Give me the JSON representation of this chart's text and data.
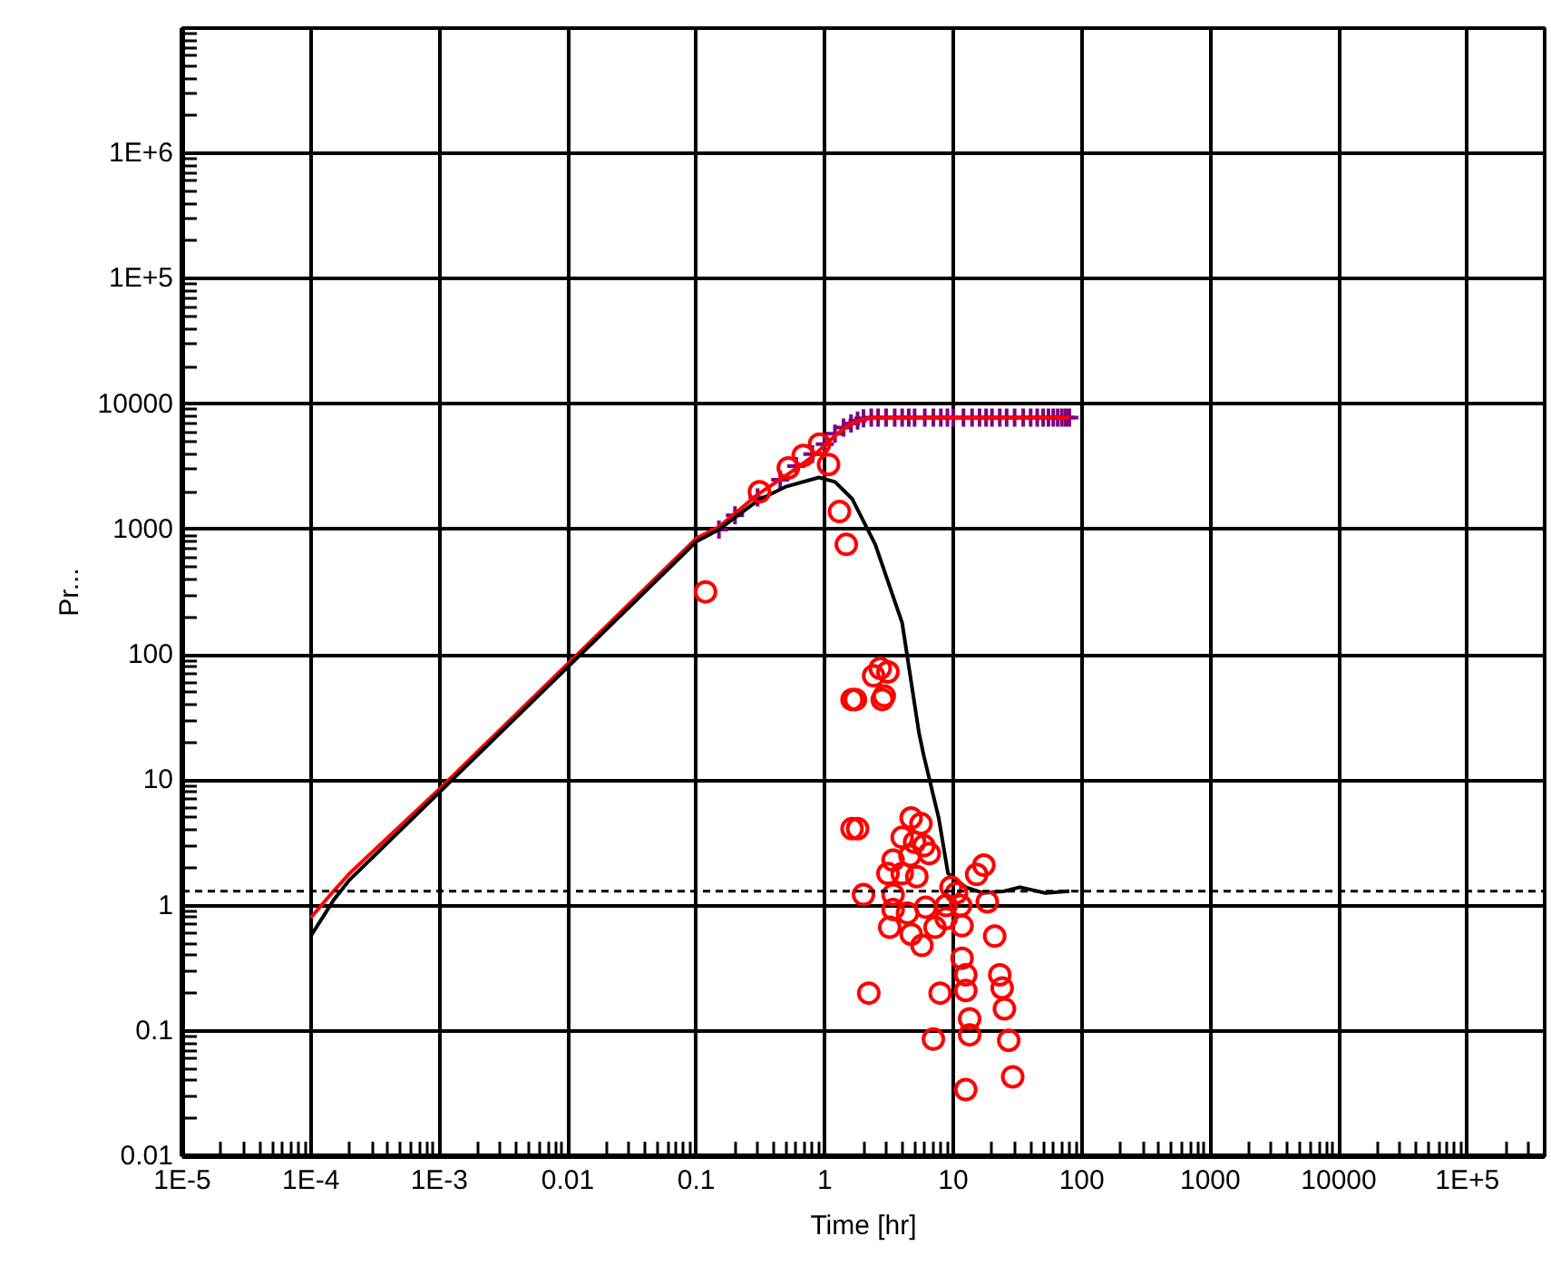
{
  "chart_data": {
    "type": "line",
    "xlabel": "Time [hr]",
    "ylabel": "Pr...",
    "log": "xy",
    "grid": true,
    "xlim": [
      1e-05,
      400000
    ],
    "ylim": [
      0.01,
      10000000
    ],
    "xticks": [
      {
        "value": 1e-05,
        "label": "1E-5"
      },
      {
        "value": 0.0001,
        "label": "1E-4"
      },
      {
        "value": 0.001,
        "label": "1E-3"
      },
      0.01,
      0.1,
      1,
      10,
      100,
      1000,
      10000,
      {
        "value": 100000,
        "label": "1E+5"
      }
    ],
    "yticks": [
      0.01,
      0.1,
      1,
      10,
      100,
      1000,
      10000,
      {
        "value": 100000,
        "label": "1E+5"
      },
      {
        "value": 1000000,
        "label": "1E+6"
      }
    ],
    "ref_lines": [
      {
        "axis": "y",
        "value": 1.3,
        "color": "#000000",
        "line_style": "dashed"
      }
    ],
    "series": [
      {
        "type": "scatter",
        "marker": "cross",
        "color": "#800080",
        "x": [
          0.15,
          0.2,
          0.3,
          0.45,
          0.6,
          0.8,
          1.0,
          1.2,
          1.4,
          1.6,
          1.8,
          2.0,
          2.3,
          2.6,
          3.0,
          3.5,
          4.0,
          4.5,
          5.0,
          6.0,
          7.0,
          8.0,
          9.0,
          10,
          12,
          14,
          16,
          18,
          20,
          23,
          26,
          30,
          35,
          40,
          45,
          50,
          55,
          60,
          65,
          70,
          75,
          80
        ],
        "values": [
          1000,
          1300,
          1800,
          2500,
          3200,
          4000,
          4800,
          5800,
          6500,
          7000,
          7400,
          7700,
          7800,
          7800,
          7800,
          7800,
          7800,
          7800,
          7800,
          7800,
          7800,
          7800,
          7800,
          7800,
          7800,
          7800,
          7800,
          7800,
          7800,
          7800,
          7800,
          7800,
          7800,
          7800,
          7800,
          7800,
          7800,
          7800,
          7800,
          7800,
          7800,
          7800
        ]
      },
      {
        "color": "#ff0000",
        "x": [
          0.0001,
          0.00015,
          0.0002,
          0.001,
          0.01,
          0.1,
          0.15,
          0.3,
          0.5,
          0.8,
          1.0,
          1.3,
          1.6,
          2.0,
          2.5,
          4,
          10,
          30,
          80
        ],
        "values": [
          0.8,
          1.3,
          1.8,
          8.5,
          85,
          850,
          1050,
          1900,
          2700,
          3800,
          4700,
          6000,
          7000,
          7600,
          7800,
          7800,
          7800,
          7800,
          7800
        ]
      },
      {
        "color": "#000000",
        "x": [
          0.0001,
          0.00015,
          0.0002,
          0.001,
          0.01,
          0.1,
          0.15,
          0.3,
          0.5,
          0.9,
          1.2,
          1.63,
          2.47,
          4.0,
          5.4,
          5.9,
          7.7,
          9.1,
          12.5,
          17,
          25,
          33,
          52,
          80
        ],
        "values": [
          0.57,
          1.1,
          1.6,
          8,
          80,
          800,
          1000,
          1700,
          2200,
          2600,
          2400,
          1760,
          760,
          180,
          24,
          15.6,
          5,
          1.8,
          1.4,
          1.26,
          1.3,
          1.4,
          1.26,
          1.3
        ]
      },
      {
        "type": "scatter",
        "marker": "circle",
        "color": "#ff0000",
        "x": [
          0.118,
          0.31,
          0.52,
          0.68,
          0.91,
          1.07,
          1.3,
          1.47,
          1.63,
          1.63,
          1.73,
          2.4,
          2.7,
          3.1,
          2.9,
          2.8,
          1.8,
          4.7,
          5.6,
          4.0,
          5.0,
          5.9,
          3.4,
          4.6,
          6.5,
          3.1,
          4.0,
          5.2,
          2.0,
          3.4,
          3.4,
          4.4,
          6.1,
          3.2,
          4.7,
          5.7,
          7.2,
          8.8,
          8.8,
          9.6,
          10.6,
          11.4,
          11.7,
          15.2,
          17.3,
          18.4,
          21,
          11.7,
          12.5,
          12.5,
          23,
          24,
          25,
          7.9,
          2.2,
          13.4,
          13.4,
          7.0,
          27,
          29,
          12.5
        ],
        "values": [
          318,
          2000,
          3100,
          3900,
          4800,
          3300,
          1390,
          760,
          44,
          4.1,
          44,
          68,
          78,
          73,
          47,
          44,
          4.1,
          5,
          4.5,
          3.5,
          3.2,
          3.0,
          2.3,
          2.5,
          2.6,
          1.8,
          1.8,
          1.7,
          1.22,
          1.22,
          0.93,
          0.87,
          0.97,
          0.67,
          0.59,
          0.48,
          0.67,
          0.79,
          1.0,
          1.4,
          1.26,
          1.0,
          0.69,
          1.77,
          2.1,
          1.07,
          0.57,
          0.38,
          0.28,
          0.21,
          0.28,
          0.22,
          0.15,
          0.2,
          0.2,
          0.125,
          0.093,
          0.086,
          0.084,
          0.043,
          0.034
        ]
      }
    ]
  }
}
